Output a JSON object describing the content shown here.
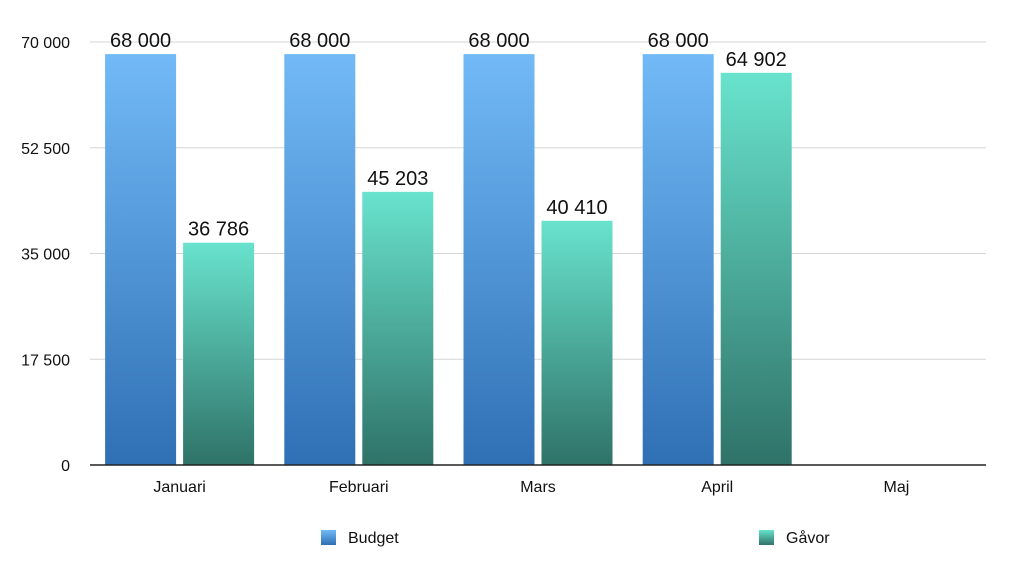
{
  "chart_data": {
    "type": "bar",
    "categories": [
      "Januari",
      "Februari",
      "Mars",
      "April",
      "Maj"
    ],
    "series": [
      {
        "name": "Budget",
        "values": [
          68000,
          68000,
          68000,
          68000,
          null
        ],
        "labels": [
          "68 000",
          "68 000",
          "68 000",
          "68 000",
          ""
        ]
      },
      {
        "name": "Gåvor",
        "values": [
          36786,
          45203,
          40410,
          64902,
          null
        ],
        "labels": [
          "36 786",
          "45 203",
          "40 410",
          "64 902",
          ""
        ]
      }
    ],
    "ylim": [
      0,
      70000
    ],
    "yticks": [
      0,
      17500,
      35000,
      52500,
      70000
    ],
    "ytick_labels": [
      "0",
      "17 500",
      "35 000",
      "52 500",
      "70 000"
    ],
    "grid": true,
    "legend_position": "bottom",
    "colors": {
      "budget_top": "#72baf7",
      "budget_bottom": "#2f70b4",
      "gavor_top": "#68e3cd",
      "gavor_bottom": "#2f7268",
      "grid": "#d6d6d6",
      "axis": "#222222"
    }
  }
}
